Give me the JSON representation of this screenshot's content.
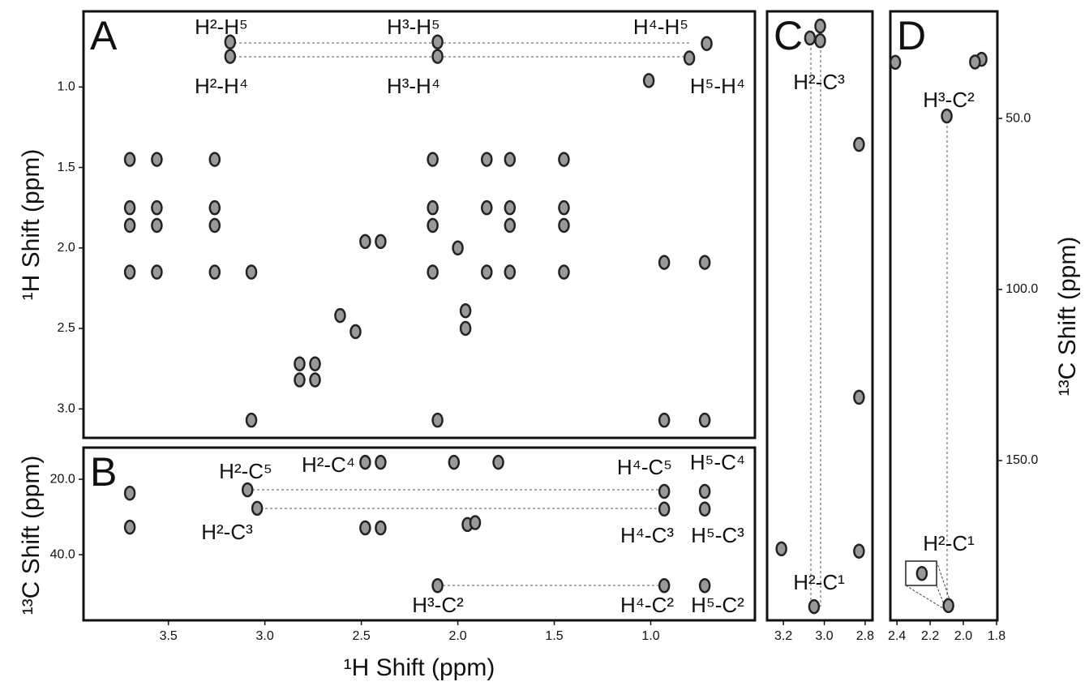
{
  "chart_data": [
    {
      "type": "scatter",
      "title": "A",
      "y_label": "¹H Shift (ppm)",
      "color": "#222",
      "xlim": [
        3.94,
        0.46
      ],
      "ylim": [
        0.53,
        3.18
      ],
      "yticks": [
        {
          "value": 1,
          "label": "1.0"
        },
        1.5,
        {
          "value": 2,
          "label": "2.0"
        },
        2.5,
        {
          "value": 3,
          "label": "3.0"
        }
      ],
      "annotations": [
        "H²-H⁵",
        "H³-H⁵",
        "H⁴-H⁵",
        "H²-H⁴",
        "H³-H⁴",
        "H⁵-H⁴"
      ],
      "x": [
        3.18,
        3.18,
        2.105,
        2.105,
        0.8,
        0.71,
        3.7,
        3.56,
        3.26,
        2.13,
        1.85,
        1.73,
        1.45,
        3.7,
        3.56,
        3.26,
        2.13,
        1.85,
        1.73,
        1.45,
        3.7,
        3.56,
        3.26,
        2.13,
        1.73,
        1.45,
        3.7,
        3.56,
        3.26,
        3.07,
        2.13,
        1.85,
        1.73,
        1.45,
        2.48,
        2.4,
        2.0,
        1.96,
        1.96,
        2.61,
        2.53,
        2.82,
        2.74,
        2.82,
        2.74,
        3.07,
        2.105,
        0.93,
        0.72,
        0.93,
        0.72,
        1.01
      ],
      "values": [
        0.72,
        0.81,
        0.72,
        0.81,
        0.82,
        0.73,
        1.45,
        1.45,
        1.45,
        1.45,
        1.45,
        1.45,
        1.45,
        1.75,
        1.75,
        1.75,
        1.75,
        1.75,
        1.75,
        1.75,
        1.86,
        1.86,
        1.86,
        1.86,
        1.86,
        1.86,
        2.15,
        2.15,
        2.15,
        2.15,
        2.15,
        2.15,
        2.15,
        2.15,
        1.96,
        1.96,
        2.0,
        2.39,
        2.5,
        2.42,
        2.52,
        2.72,
        2.72,
        2.82,
        2.82,
        3.07,
        3.07,
        3.07,
        3.07,
        2.09,
        2.09,
        0.96
      ]
    },
    {
      "type": "scatter",
      "title": "B",
      "x_label": "¹H Shift (ppm)",
      "y_label": "¹³C Shift (ppm)",
      "color": "#222",
      "xlim": [
        3.94,
        0.46
      ],
      "ylim": [
        11.6,
        57.4
      ],
      "xticks": [
        3.5,
        {
          "value": 3,
          "label": "3.0"
        },
        2.5,
        {
          "value": 2,
          "label": "2.0"
        },
        1.5,
        {
          "value": 1,
          "label": "1.0"
        }
      ],
      "yticks": [
        {
          "value": 20,
          "label": "20.0"
        },
        {
          "value": 40,
          "label": "40.0"
        }
      ],
      "annotations": [
        "H²-C⁵",
        "H²-C⁴",
        "H⁴-C⁵",
        "H⁵-C⁴",
        "H²-C³",
        "H⁴-C³",
        "H⁵-C³",
        "H³-C²",
        "H⁴-C²",
        "H⁵-C²"
      ],
      "x": [
        3.7,
        3.7,
        3.09,
        3.04,
        2.48,
        2.4,
        2.48,
        2.4,
        2.02,
        1.79,
        1.95,
        1.91,
        2.105,
        0.93,
        0.93,
        0.72,
        0.72,
        0.93,
        0.72
      ],
      "values": [
        23.7,
        32.7,
        22.8,
        27.7,
        15.5,
        15.5,
        32.9,
        32.9,
        15.5,
        15.5,
        32.0,
        31.5,
        48.2,
        23.2,
        27.9,
        23.2,
        27.9,
        48.2,
        48.2
      ]
    },
    {
      "type": "scatter",
      "title": "C",
      "color": "#222",
      "xlim": [
        3.28,
        2.764
      ],
      "ylim": [
        18.7,
        196.7
      ],
      "xticks": [
        3.2,
        {
          "value": 3,
          "label": "3.0"
        },
        2.8
      ],
      "annotations": [
        "H²-C³",
        "H²-C¹"
      ],
      "x": [
        3.07,
        3.02,
        3.02,
        2.83,
        2.83,
        3.21,
        2.83,
        3.05
      ],
      "values": [
        26.5,
        27.3,
        23.0,
        57.6,
        131.5,
        175.8,
        176.5,
        192.7
      ]
    },
    {
      "type": "scatter",
      "title": "D",
      "y_label": "¹³C Shift (ppm)",
      "color": "#222",
      "xlim": [
        2.44,
        1.795
      ],
      "ylim": [
        18.7,
        196.7
      ],
      "xticks": [
        2.4,
        2.2,
        {
          "value": 2,
          "label": "2.0"
        },
        1.8
      ],
      "yticks": [
        {
          "value": 50,
          "label": "50.0"
        },
        {
          "value": 100,
          "label": "100.0"
        },
        {
          "value": 150,
          "label": "150.0"
        }
      ],
      "annotations": [
        "H³-C²",
        "H²-C¹"
      ],
      "x": [
        1.89,
        1.93,
        2.1,
        2.41,
        2.09,
        2.25
      ],
      "values": [
        32.7,
        33.5,
        49.3,
        33.6,
        192.4,
        183.0
      ]
    }
  ]
}
